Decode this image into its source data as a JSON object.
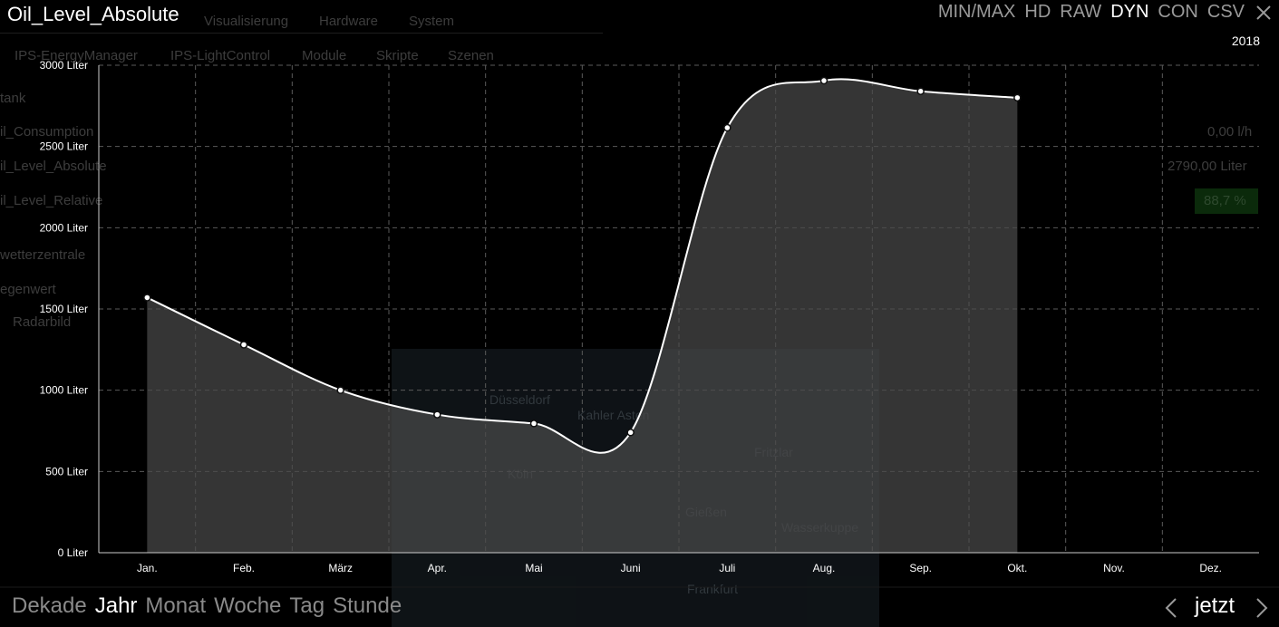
{
  "window": {
    "title": "Oil_Level_Absolute",
    "period_label": "2018",
    "now_label": "jetzt"
  },
  "view_modes": [
    {
      "label": "MIN/MAX",
      "active": false
    },
    {
      "label": "HD",
      "active": false
    },
    {
      "label": "RAW",
      "active": false
    },
    {
      "label": "DYN",
      "active": true
    },
    {
      "label": "CON",
      "active": false
    },
    {
      "label": "CSV",
      "active": false
    }
  ],
  "time_ranges": [
    {
      "label": "Dekade",
      "active": false
    },
    {
      "label": "Jahr",
      "active": true
    },
    {
      "label": "Monat",
      "active": false
    },
    {
      "label": "Woche",
      "active": false
    },
    {
      "label": "Tag",
      "active": false
    },
    {
      "label": "Stunde",
      "active": false
    }
  ],
  "background": {
    "menu": [
      "Visualisierung",
      "Hardware",
      "System"
    ],
    "submenu": [
      "IPS-EnergyManager",
      "IPS-LightControl",
      "Module",
      "Skripte",
      "Szenen"
    ],
    "rows": [
      "tank",
      "il_Consumption",
      "il_Level_Absolute",
      "il_Level_Relative",
      "wetterzentrale",
      "egenwert",
      "Radarbild"
    ],
    "values": [
      "0,00 l/h",
      "2790,00 Liter",
      "88,7 %"
    ],
    "map_places": [
      "Düsseldorf",
      "Kahler Asten",
      "Fritzlar",
      "Köln",
      "Gießen",
      "Wasserkuppe",
      "Frankfurt"
    ]
  },
  "colors": {
    "line": "#ffffff",
    "area": "#4a4a4a",
    "grid": "#5a5a5a",
    "axis": "#cccccc",
    "inactive_text": "#9a9a9a"
  },
  "icons": {
    "close": "close-icon",
    "prev": "chevron-left-icon",
    "next": "chevron-right-icon"
  },
  "chart_data": {
    "type": "area",
    "categories": [
      "Jan.",
      "Feb.",
      "März",
      "Apr.",
      "Mai",
      "Juni",
      "Juli",
      "Aug.",
      "Sep.",
      "Okt.",
      "Nov.",
      "Dez."
    ],
    "values": [
      1570,
      1280,
      1000,
      850,
      795,
      740,
      2615,
      2905,
      2840,
      2800,
      null,
      null
    ],
    "y_ticks": [
      0,
      500,
      1000,
      1500,
      2000,
      2500,
      3000
    ],
    "y_tick_labels": [
      "0 Liter",
      "500 Liter",
      "1000 Liter",
      "1500 Liter",
      "2000 Liter",
      "2500 Liter",
      "3000 Liter"
    ],
    "ylim": [
      0,
      3000
    ],
    "grid": true
  }
}
